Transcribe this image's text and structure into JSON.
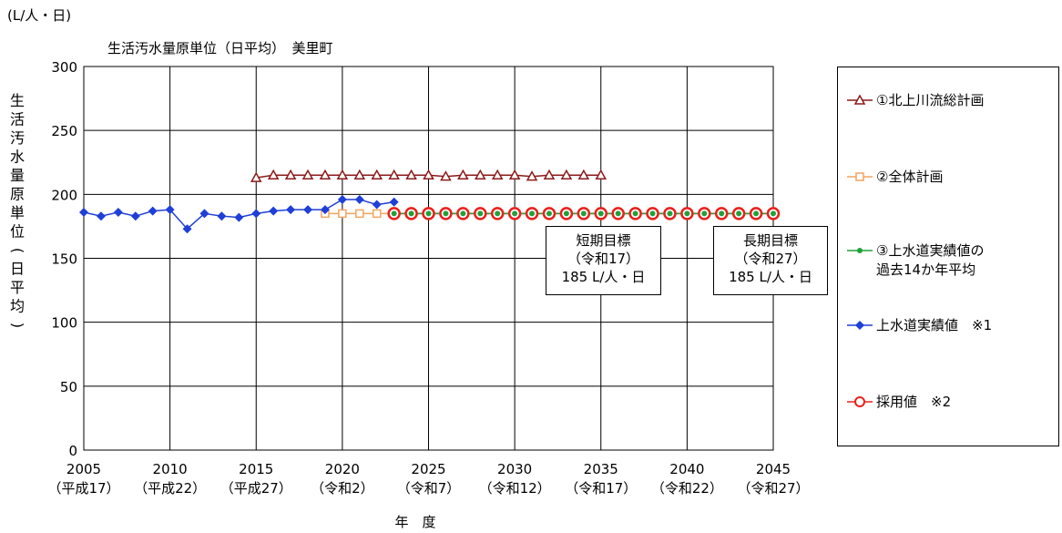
{
  "chart_data": {
    "type": "line",
    "unit_label": "(L/人・日)",
    "title": "生活汚水量原単位（日平均）　美里町",
    "ylabel": "生活汚水量原単位(日平均)",
    "xlabel": "年　度",
    "ylim": [
      0,
      300
    ],
    "yticks": [
      0,
      50,
      100,
      150,
      200,
      250,
      300
    ],
    "xlim": [
      2005,
      2045
    ],
    "xticks": [
      {
        "value": 2005,
        "label": "2005",
        "sublabel": "（平成17）"
      },
      {
        "value": 2010,
        "label": "2010",
        "sublabel": "（平成22）"
      },
      {
        "value": 2015,
        "label": "2015",
        "sublabel": "（平成27）"
      },
      {
        "value": 2020,
        "label": "2020",
        "sublabel": "（令和2）"
      },
      {
        "value": 2025,
        "label": "2025",
        "sublabel": "（令和7）"
      },
      {
        "value": 2030,
        "label": "2030",
        "sublabel": "（令和12）"
      },
      {
        "value": 2035,
        "label": "2035",
        "sublabel": "（令和17）"
      },
      {
        "value": 2040,
        "label": "2040",
        "sublabel": "（令和22）"
      },
      {
        "value": 2045,
        "label": "2045",
        "sublabel": "（令和27）"
      }
    ],
    "grid": true,
    "legend_position": "right",
    "series": [
      {
        "name": "①北上川流総計画",
        "color": "#8B1A1A",
        "marker": "triangle",
        "x": [
          2015,
          2016,
          2017,
          2018,
          2019,
          2020,
          2021,
          2022,
          2023,
          2024,
          2025,
          2026,
          2027,
          2028,
          2029,
          2030,
          2031,
          2032,
          2033,
          2034,
          2035
        ],
        "y": [
          213,
          215,
          215,
          215,
          215,
          215,
          215,
          215,
          215,
          215,
          215,
          214,
          215,
          215,
          215,
          215,
          214,
          215,
          215,
          215,
          215
        ]
      },
      {
        "name": "②全体計画",
        "color": "#F4A460",
        "marker": "square",
        "x": [
          2019,
          2020,
          2021,
          2022,
          2023,
          2024,
          2025,
          2026,
          2027,
          2028,
          2029,
          2030,
          2031,
          2032,
          2033,
          2034,
          2035,
          2036,
          2037,
          2038,
          2039,
          2040,
          2041,
          2042,
          2043,
          2044,
          2045
        ],
        "y": [
          185,
          185,
          185,
          185,
          185,
          185,
          185,
          185,
          185,
          185,
          185,
          185,
          185,
          185,
          185,
          185,
          185,
          185,
          185,
          185,
          185,
          185,
          185,
          185,
          185,
          185,
          185
        ]
      },
      {
        "name": "③上水道実績値の",
        "name2": "過去14か年平均",
        "color": "#22A03A",
        "marker": "dot",
        "x": [
          2023,
          2024,
          2025,
          2026,
          2027,
          2028,
          2029,
          2030,
          2031,
          2032,
          2033,
          2034,
          2035,
          2036,
          2037,
          2038,
          2039,
          2040,
          2041,
          2042,
          2043,
          2044,
          2045
        ],
        "y": [
          185,
          185,
          185,
          185,
          185,
          185,
          185,
          185,
          185,
          185,
          185,
          185,
          185,
          185,
          185,
          185,
          185,
          185,
          185,
          185,
          185,
          185,
          185
        ]
      },
      {
        "name": "上水道実績値　※1",
        "color": "#1F3FD6",
        "marker": "diamond",
        "x": [
          2005,
          2006,
          2007,
          2008,
          2009,
          2010,
          2011,
          2012,
          2013,
          2014,
          2015,
          2016,
          2017,
          2018,
          2019,
          2020,
          2021,
          2022,
          2023
        ],
        "y": [
          186,
          183,
          186,
          183,
          187,
          188,
          173,
          185,
          183,
          182,
          185,
          187,
          188,
          188,
          188,
          196,
          196,
          192,
          194
        ]
      },
      {
        "name": "採用値　※2",
        "color": "#E8211C",
        "marker": "circle",
        "x": [
          2023,
          2024,
          2025,
          2026,
          2027,
          2028,
          2029,
          2030,
          2031,
          2032,
          2033,
          2034,
          2035,
          2036,
          2037,
          2038,
          2039,
          2040,
          2041,
          2042,
          2043,
          2044,
          2045
        ],
        "y": [
          185,
          185,
          185,
          185,
          185,
          185,
          185,
          185,
          185,
          185,
          185,
          185,
          185,
          185,
          185,
          185,
          185,
          185,
          185,
          185,
          185,
          185,
          185
        ]
      }
    ],
    "annotations": [
      {
        "line1": "短期目標",
        "line2": "（令和17）",
        "line3": "185 L/人・日"
      },
      {
        "line1": "長期目標",
        "line2": "（令和27）",
        "line3": "185 L/人・日"
      }
    ]
  }
}
